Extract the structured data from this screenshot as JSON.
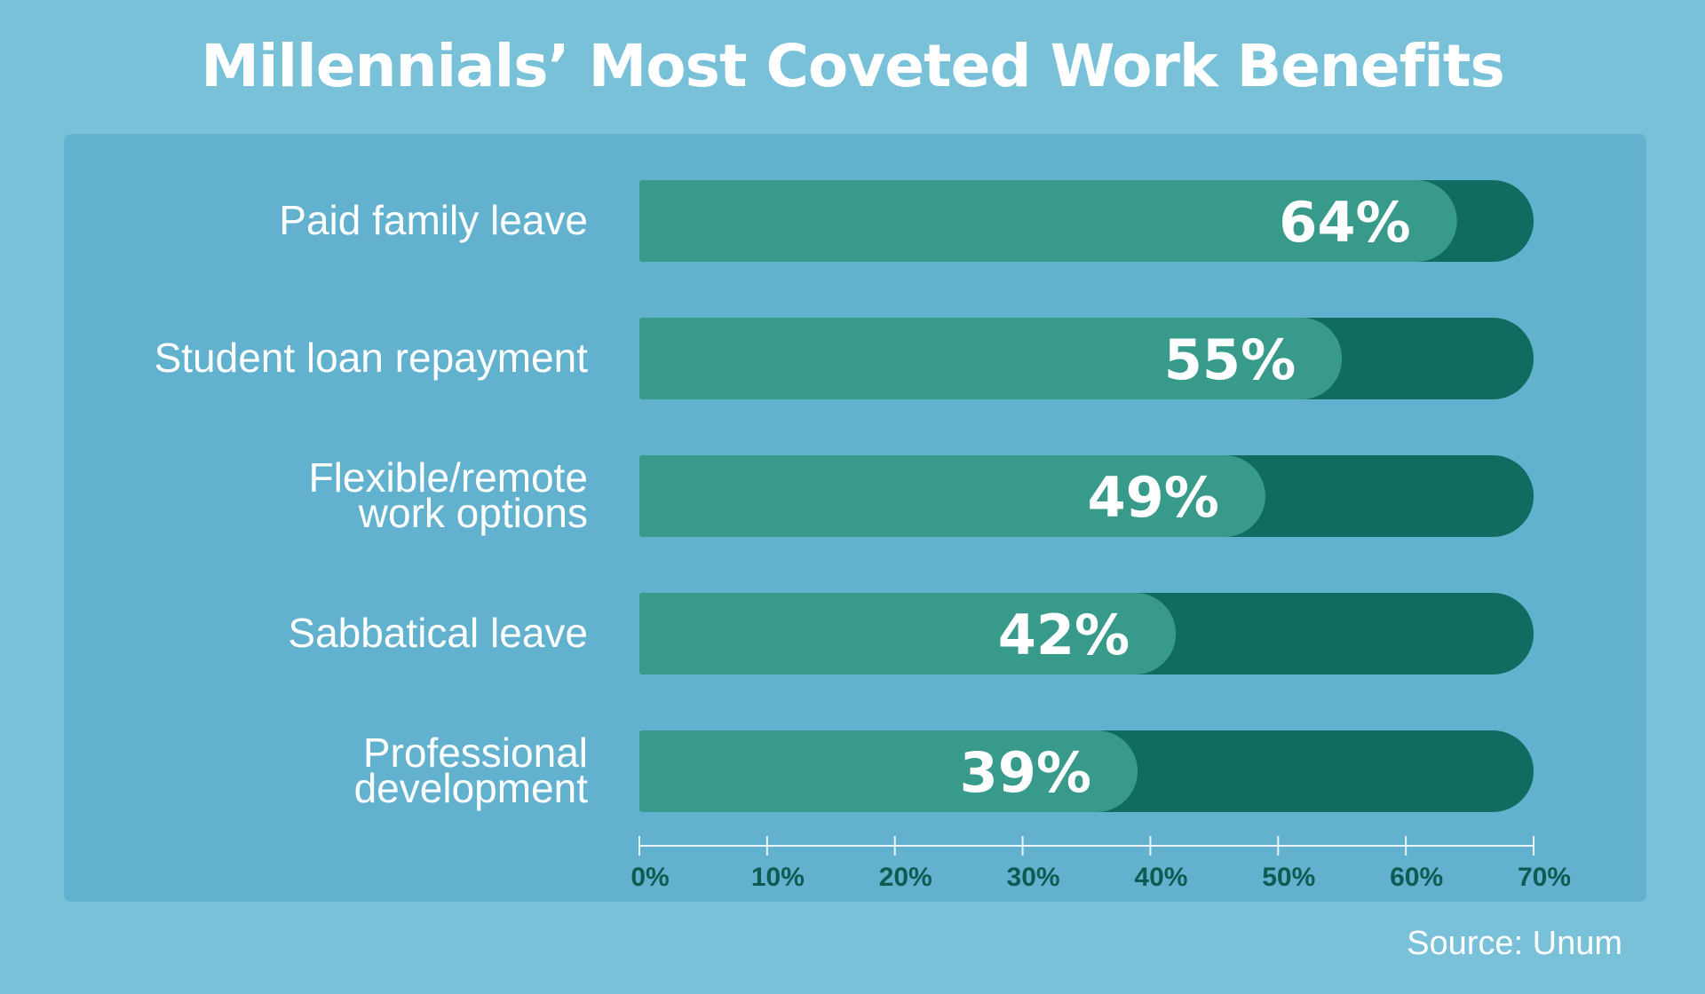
{
  "title": "Millennials’ Most Coveted Work Benefits",
  "source": "Source: Unum",
  "colors": {
    "background": "#78c1d9",
    "panel": "#62b2cf",
    "bar_fill": "#389a8a",
    "bar_track": "#106b60",
    "axis": "#e9f5f8",
    "tick_label": "#0d5c52",
    "text": "#ffffff"
  },
  "chart_data": {
    "type": "bar",
    "orientation": "horizontal",
    "title": "Millennials’ Most Coveted Work Benefits",
    "categories": [
      [
        "Paid family leave"
      ],
      [
        "Student loan repayment"
      ],
      [
        "Flexible/remote",
        "work options"
      ],
      [
        "Sabbatical leave"
      ],
      [
        "Professional",
        "development"
      ]
    ],
    "values": [
      64,
      55,
      49,
      42,
      39
    ],
    "value_labels": [
      "64%",
      "55%",
      "49%",
      "42%",
      "39%"
    ],
    "xlim": [
      0,
      70
    ],
    "xticks": [
      0,
      10,
      20,
      30,
      40,
      50,
      60,
      70
    ],
    "xtick_labels": [
      "0%",
      "10%",
      "20%",
      "30%",
      "40%",
      "50%",
      "60%",
      "70%"
    ],
    "unit": "%",
    "grid": false,
    "legend": "none"
  }
}
